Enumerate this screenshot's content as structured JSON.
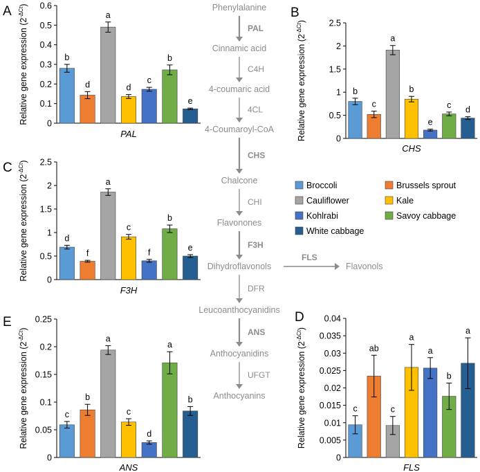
{
  "colors": {
    "Broccoli": "#5b9bd5",
    "Brussels sprout": "#ed7d31",
    "Cauliflower": "#a5a5a5",
    "Kale": "#ffc000",
    "Kohlrabi": "#4472c4",
    "Savoy cabbage": "#70ad47",
    "White cabbage": "#255e91"
  },
  "legend": {
    "entries": [
      "Broccoli",
      "Brussels sprout",
      "Cauliflower",
      "Kale",
      "Kohlrabi",
      "Savoy cabbage",
      "White cabbage"
    ]
  },
  "ylabel_text": "Relative gene expression (2",
  "ylabel_sup": "-ΔCt",
  "ylabel_close": ")",
  "pathway": {
    "compounds": [
      "Phenylalanine",
      "Cinnamic acid",
      "4-coumaric acid",
      "4-Coumaroyl-CoA",
      "Chalcone",
      "Flavonones",
      "Dihydroflavonols",
      "Leucoanthocyanidins",
      "Anthocyanidins",
      "Anthocyanins"
    ],
    "enzymes": [
      {
        "label": "PAL",
        "bold": true
      },
      {
        "label": "C4H",
        "bold": false
      },
      {
        "label": "4CL",
        "bold": false
      },
      {
        "label": "CHS",
        "bold": true
      },
      {
        "label": "CHI",
        "bold": false
      },
      {
        "label": "F3H",
        "bold": true
      },
      {
        "label": "DFR",
        "bold": false
      },
      {
        "label": "ANS",
        "bold": true
      },
      {
        "label": "UFGT",
        "bold": false
      }
    ],
    "branch": {
      "enzyme": "FLS",
      "product": "Flavonols"
    }
  },
  "chart_data": [
    {
      "panel": "A",
      "type": "bar",
      "title": "",
      "xlabel": "PAL",
      "ylabel": "Relative gene expression (2-ΔCt)",
      "categories": [
        "Broccoli",
        "Brussels sprout",
        "Cauliflower",
        "Kale",
        "Kohlrabi",
        "Savoy cabbage",
        "White cabbage"
      ],
      "values": [
        0.28,
        0.143,
        0.49,
        0.136,
        0.173,
        0.272,
        0.073
      ],
      "errors": [
        0.02,
        0.018,
        0.026,
        0.01,
        0.01,
        0.025,
        0.004
      ],
      "letters": [
        "b",
        "d",
        "a",
        "d",
        "c",
        "b",
        "e"
      ],
      "ylim": [
        0,
        0.6
      ],
      "yticks": [
        "0",
        "0.1",
        "0.2",
        "0.3",
        "0.4",
        "0.5",
        "0.6"
      ]
    },
    {
      "panel": "B",
      "type": "bar",
      "title": "",
      "xlabel": "CHS",
      "ylabel": "Relative gene expression (2-ΔCt)",
      "categories": [
        "Broccoli",
        "Brussels sprout",
        "Cauliflower",
        "Kale",
        "Kohlrabi",
        "Savoy cabbage",
        "White cabbage"
      ],
      "values": [
        0.8,
        0.52,
        1.91,
        0.85,
        0.18,
        0.53,
        0.44
      ],
      "errors": [
        0.07,
        0.07,
        0.1,
        0.06,
        0.02,
        0.04,
        0.03
      ],
      "letters": [
        "b",
        "c",
        "a",
        "b",
        "e",
        "c",
        "d"
      ],
      "ylim": [
        0,
        2.5
      ],
      "yticks": [
        "0",
        "0.5",
        "1",
        "1.5",
        "2",
        "2.5"
      ]
    },
    {
      "panel": "C",
      "type": "bar",
      "title": "",
      "xlabel": "F3H",
      "ylabel": "Relative gene expression (2-ΔCt)",
      "categories": [
        "Broccoli",
        "Brussels sprout",
        "Cauliflower",
        "Kale",
        "Kohlrabi",
        "Savoy cabbage",
        "White cabbage"
      ],
      "values": [
        0.69,
        0.39,
        1.86,
        0.91,
        0.4,
        1.08,
        0.5
      ],
      "errors": [
        0.04,
        0.02,
        0.07,
        0.05,
        0.03,
        0.08,
        0.03
      ],
      "letters": [
        "d",
        "f",
        "a",
        "c",
        "f",
        "b",
        "e"
      ],
      "ylim": [
        0,
        2.5
      ],
      "yticks": [
        "0",
        "0.5",
        "1",
        "1.5",
        "2",
        "2.5"
      ]
    },
    {
      "panel": "D",
      "type": "bar",
      "title": "",
      "xlabel": "FLS",
      "ylabel": "Relative gene expression (2-ΔCt)",
      "categories": [
        "Broccoli",
        "Brussels sprout",
        "Cauliflower",
        "Kale",
        "Kohlrabi",
        "Savoy cabbage",
        "White cabbage"
      ],
      "values": [
        0.0094,
        0.0234,
        0.0092,
        0.0259,
        0.0257,
        0.0176,
        0.0271
      ],
      "errors": [
        0.0026,
        0.006,
        0.0026,
        0.0066,
        0.003,
        0.0038,
        0.0073
      ],
      "letters": [
        "c",
        "ab",
        "c",
        "a",
        "a",
        "b",
        "a"
      ],
      "ylim": [
        0,
        0.04
      ],
      "yticks": [
        "0",
        "0.005",
        "0.01",
        "0.015",
        "0.02",
        "0.025",
        "0.03",
        "0.035",
        "0.04"
      ]
    },
    {
      "panel": "E",
      "type": "bar",
      "title": "",
      "xlabel": "ANS",
      "ylabel": "Relative gene expression (2-ΔCt)",
      "categories": [
        "Broccoli",
        "Brussels sprout",
        "Cauliflower",
        "Kale",
        "Kohlrabi",
        "Savoy cabbage",
        "White cabbage"
      ],
      "values": [
        0.059,
        0.086,
        0.194,
        0.064,
        0.027,
        0.171,
        0.084
      ],
      "errors": [
        0.006,
        0.01,
        0.008,
        0.006,
        0.003,
        0.02,
        0.008
      ],
      "letters": [
        "c",
        "b",
        "a",
        "c",
        "d",
        "a",
        "b"
      ],
      "ylim": [
        0,
        0.25
      ],
      "yticks": [
        "0",
        "0.05",
        "0.1",
        "0.15",
        "0.2",
        "0.25"
      ]
    }
  ]
}
